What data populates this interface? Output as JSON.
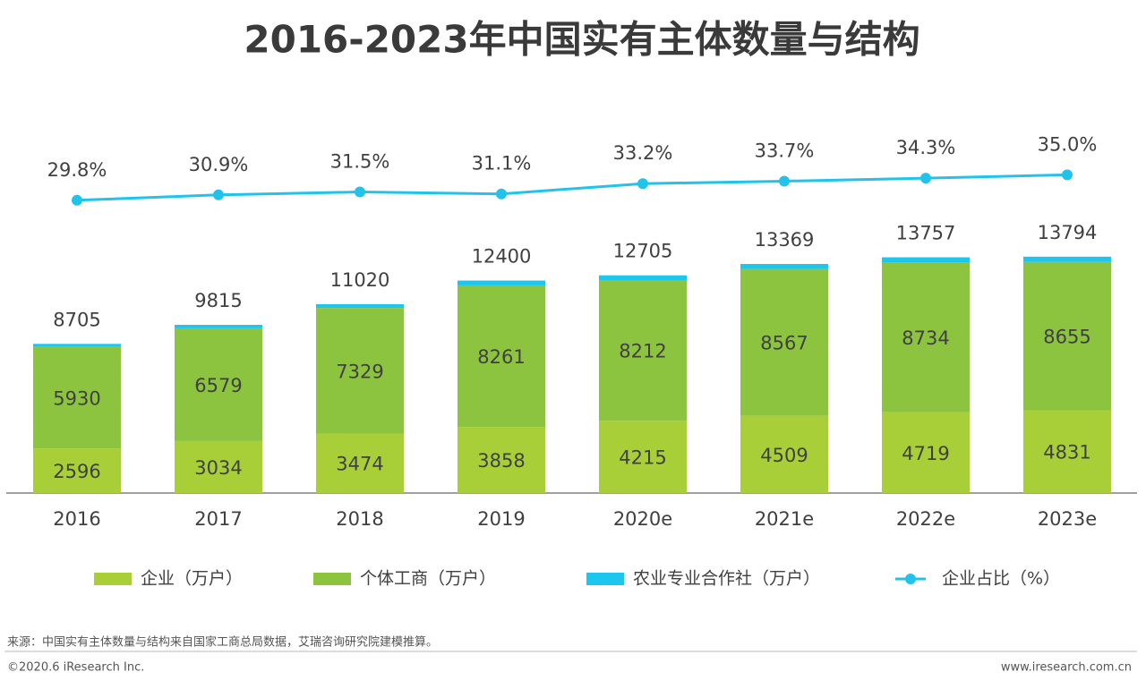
{
  "chart_data": {
    "type": "bar",
    "stacked": true,
    "title": "2016-2023年中国实有主体数量与结构",
    "categories": [
      "2016",
      "2017",
      "2018",
      "2019",
      "2020e",
      "2021e",
      "2022e",
      "2023e"
    ],
    "series": [
      {
        "name": "企业（万户）",
        "color": "#a8cf38",
        "values": [
          2596,
          3034,
          3474,
          3858,
          4215,
          4509,
          4719,
          4831
        ]
      },
      {
        "name": "个体工商（万户）",
        "color": "#8cc43f",
        "values": [
          5930,
          6579,
          7329,
          8261,
          8212,
          8567,
          8734,
          8655
        ]
      },
      {
        "name": "农业专业合作社（万户）",
        "color": "#1ec6ee",
        "values": [
          179,
          202,
          217,
          281,
          278,
          293,
          304,
          308
        ]
      },
      {
        "name": "企业占比（%）",
        "type": "line",
        "axis": "y2",
        "color": "#22c3ea",
        "values": [
          29.8,
          30.9,
          31.5,
          31.1,
          33.2,
          33.7,
          34.3,
          35.0
        ],
        "value_labels": [
          "29.8%",
          "30.9%",
          "31.5%",
          "31.1%",
          "33.2%",
          "33.7%",
          "34.3%",
          "35.0%"
        ]
      }
    ],
    "totals": [
      8705,
      9815,
      11020,
      12400,
      12705,
      13369,
      13757,
      13794
    ],
    "ylim": [
      0,
      20000
    ],
    "y2lim": [
      -30,
      40
    ]
  },
  "source": "来源：中国实有主体数量与结构来自国家工商总局数据，艾瑞咨询研究院建模推算。",
  "copyright": "©2020.6 iResearch Inc.",
  "website": "www.iresearch.com.cn"
}
